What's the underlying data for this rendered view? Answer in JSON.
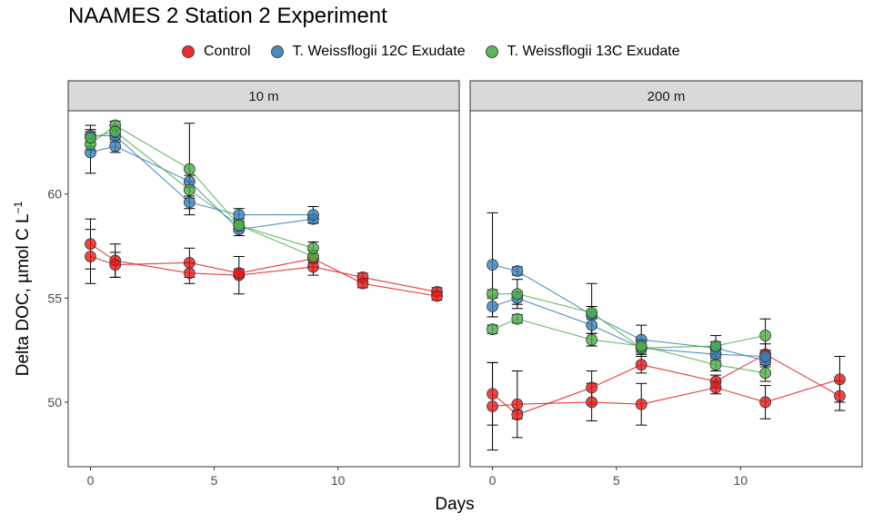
{
  "title": "NAAMES 2 Station 2 Experiment",
  "legend": [
    {
      "label": "Control",
      "color": "#E41A1C"
    },
    {
      "label": "T. Weissflogii 12C Exudate",
      "color": "#377EB8"
    },
    {
      "label": "T. Weissflogii 13C Exudate",
      "color": "#4DAF4A"
    }
  ],
  "axes": {
    "xlabel": "Days",
    "ylabel": "Delta DOC, µmol C L",
    "ylabel_superscript": "−1"
  },
  "chart_data": {
    "type": "line",
    "title": "NAAMES 2 Station 2 Experiment",
    "xlabel": "Days",
    "ylabel": "Delta DOC, µmol C L⁻¹",
    "xlim": [
      -0.9,
      14.9
    ],
    "ylim": [
      46.9,
      64.0
    ],
    "x_ticks": [
      0,
      5,
      10
    ],
    "x_tick_labels": [
      "0",
      "5",
      "10"
    ],
    "y_ticks": [
      50,
      55,
      60
    ],
    "y_tick_labels": [
      "50",
      "55",
      "60"
    ],
    "grid": false,
    "legend_position": "top",
    "panels": [
      {
        "strip": "10 m",
        "series": [
          {
            "name": "Control",
            "color": "#E41A1C",
            "lines": [
              {
                "points": [
                  {
                    "x": 0,
                    "y": 57.6,
                    "err": 1.2
                  },
                  {
                    "x": 1,
                    "y": 56.8,
                    "err": 0.8
                  },
                  {
                    "x": 4,
                    "y": 56.2,
                    "err": 0.5
                  },
                  {
                    "x": 6,
                    "y": 56.1,
                    "err": 0.9
                  },
                  {
                    "x": 9,
                    "y": 56.5,
                    "err": 0.4
                  },
                  {
                    "x": 11,
                    "y": 56.0,
                    "err": 0.2
                  },
                  {
                    "x": 14,
                    "y": 55.3,
                    "err": 0.2
                  }
                ]
              },
              {
                "points": [
                  {
                    "x": 0,
                    "y": 57.0,
                    "err": 1.3
                  },
                  {
                    "x": 1,
                    "y": 56.6,
                    "err": 0.6
                  },
                  {
                    "x": 4,
                    "y": 56.7,
                    "err": 0.7
                  },
                  {
                    "x": 6,
                    "y": 56.2,
                    "err": 0.2
                  },
                  {
                    "x": 9,
                    "y": 56.9,
                    "err": 0.4
                  },
                  {
                    "x": 11,
                    "y": 55.7,
                    "err": 0.2
                  },
                  {
                    "x": 14,
                    "y": 55.1,
                    "err": 0.2
                  }
                ]
              }
            ]
          },
          {
            "name": "T. Weissflogii 12C Exudate",
            "color": "#377EB8",
            "lines": [
              {
                "points": [
                  {
                    "x": 0,
                    "y": 62.0,
                    "err": 1.0
                  },
                  {
                    "x": 1,
                    "y": 62.3,
                    "err": 0.3
                  },
                  {
                    "x": 4,
                    "y": 60.6,
                    "err": 0.3
                  },
                  {
                    "x": 6,
                    "y": 58.3,
                    "err": 0.3
                  },
                  {
                    "x": 9,
                    "y": 58.8,
                    "err": 0.2
                  }
                ]
              },
              {
                "points": [
                  {
                    "x": 0,
                    "y": 62.8,
                    "err": 0.5
                  },
                  {
                    "x": 1,
                    "y": 62.8,
                    "err": 0.3
                  },
                  {
                    "x": 4,
                    "y": 59.6,
                    "err": 0.3
                  },
                  {
                    "x": 6,
                    "y": 59.0,
                    "err": 0.3
                  },
                  {
                    "x": 9,
                    "y": 59.0,
                    "err": 0.4
                  }
                ]
              }
            ]
          },
          {
            "name": "T. Weissflogii 13C Exudate",
            "color": "#4DAF4A",
            "lines": [
              {
                "points": [
                  {
                    "x": 0,
                    "y": 62.4,
                    "err": 0.3
                  },
                  {
                    "x": 1,
                    "y": 63.3,
                    "err": 0.2
                  },
                  {
                    "x": 4,
                    "y": 61.2,
                    "err": 2.2
                  },
                  {
                    "x": 6,
                    "y": 58.5,
                    "err": 0.3
                  },
                  {
                    "x": 9,
                    "y": 57.0,
                    "err": 0.3
                  }
                ]
              },
              {
                "points": [
                  {
                    "x": 0,
                    "y": 62.7,
                    "err": 0.4
                  },
                  {
                    "x": 1,
                    "y": 63.0,
                    "err": 0.3
                  },
                  {
                    "x": 4,
                    "y": 60.2,
                    "err": 0.4
                  },
                  {
                    "x": 6,
                    "y": 58.5,
                    "err": 0.3
                  },
                  {
                    "x": 9,
                    "y": 57.4,
                    "err": 0.3
                  }
                ]
              }
            ]
          }
        ]
      },
      {
        "strip": "200 m",
        "series": [
          {
            "name": "Control",
            "color": "#E41A1C",
            "lines": [
              {
                "points": [
                  {
                    "x": 0,
                    "y": 50.4,
                    "err": 1.5
                  },
                  {
                    "x": 1,
                    "y": 49.4,
                    "err": 0.2
                  },
                  {
                    "x": 4,
                    "y": 50.7,
                    "err": 0.8
                  },
                  {
                    "x": 6,
                    "y": 51.8,
                    "err": 0.4
                  },
                  {
                    "x": 9,
                    "y": 51.0,
                    "err": 0.3
                  },
                  {
                    "x": 11,
                    "y": 52.3,
                    "err": 0.5
                  },
                  {
                    "x": 14,
                    "y": 50.3,
                    "err": 0.7
                  }
                ]
              },
              {
                "points": [
                  {
                    "x": 0,
                    "y": 49.8,
                    "err": 2.1
                  },
                  {
                    "x": 1,
                    "y": 49.9,
                    "err": 1.6
                  },
                  {
                    "x": 4,
                    "y": 50.0,
                    "err": 0.9
                  },
                  {
                    "x": 6,
                    "y": 49.9,
                    "err": 1.0
                  },
                  {
                    "x": 9,
                    "y": 50.7,
                    "err": 0.3
                  },
                  {
                    "x": 11,
                    "y": 50.0,
                    "err": 0.8
                  },
                  {
                    "x": 14,
                    "y": 51.1,
                    "err": 1.1
                  }
                ]
              }
            ]
          },
          {
            "name": "T. Weissflogii 12C Exudate",
            "color": "#377EB8",
            "lines": [
              {
                "points": [
                  {
                    "x": 0,
                    "y": 56.6,
                    "err": 2.5
                  },
                  {
                    "x": 1,
                    "y": 56.3,
                    "err": 0.2
                  },
                  {
                    "x": 4,
                    "y": 54.2,
                    "err": 1.5
                  },
                  {
                    "x": 6,
                    "y": 53.0,
                    "err": 0.7
                  },
                  {
                    "x": 9,
                    "y": 52.6,
                    "err": 0.3
                  },
                  {
                    "x": 11,
                    "y": 52.0,
                    "err": 0.3
                  }
                ]
              },
              {
                "points": [
                  {
                    "x": 0,
                    "y": 54.6,
                    "err": 0.5
                  },
                  {
                    "x": 1,
                    "y": 55.0,
                    "err": 0.3
                  },
                  {
                    "x": 4,
                    "y": 53.7,
                    "err": 0.4
                  },
                  {
                    "x": 6,
                    "y": 52.6,
                    "err": 0.4
                  },
                  {
                    "x": 9,
                    "y": 52.3,
                    "err": 0.3
                  },
                  {
                    "x": 11,
                    "y": 52.2,
                    "err": 0.3
                  }
                ]
              }
            ]
          },
          {
            "name": "T. Weissflogii 13C Exudate",
            "color": "#4DAF4A",
            "lines": [
              {
                "points": [
                  {
                    "x": 0,
                    "y": 55.2,
                    "err": 0.2
                  },
                  {
                    "x": 1,
                    "y": 55.2,
                    "err": 0.7
                  },
                  {
                    "x": 4,
                    "y": 54.3,
                    "err": 0.3
                  },
                  {
                    "x": 6,
                    "y": 52.6,
                    "err": 0.3
                  },
                  {
                    "x": 9,
                    "y": 52.7,
                    "err": 0.5
                  },
                  {
                    "x": 11,
                    "y": 53.2,
                    "err": 0.8
                  }
                ]
              },
              {
                "points": [
                  {
                    "x": 0,
                    "y": 53.5,
                    "err": 0.2
                  },
                  {
                    "x": 1,
                    "y": 54.0,
                    "err": 0.2
                  },
                  {
                    "x": 4,
                    "y": 53.0,
                    "err": 0.3
                  },
                  {
                    "x": 6,
                    "y": 52.7,
                    "err": 0.3
                  },
                  {
                    "x": 9,
                    "y": 51.8,
                    "err": 0.3
                  },
                  {
                    "x": 11,
                    "y": 51.4,
                    "err": 0.4
                  }
                ]
              }
            ]
          }
        ]
      }
    ]
  }
}
